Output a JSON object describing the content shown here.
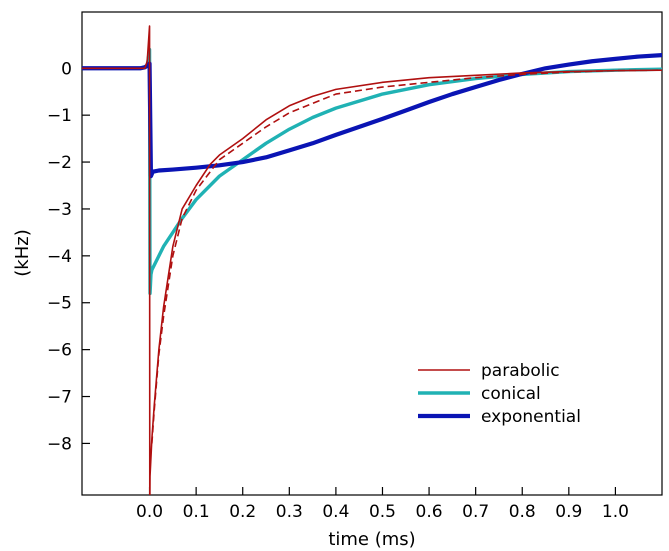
{
  "chart_data": {
    "type": "line",
    "title": "",
    "xlabel": "time (ms)",
    "ylabel": "(kHz)",
    "xlim": [
      -0.145,
      1.1
    ],
    "ylim": [
      -9.1,
      1.2
    ],
    "x_ticks": [
      "0.0",
      "0.1",
      "0.2",
      "0.3",
      "0.4",
      "0.5",
      "0.6",
      "0.7",
      "0.8",
      "0.9",
      "1.0"
    ],
    "x_tick_values": [
      0,
      0.1,
      0.2,
      0.3,
      0.4,
      0.5,
      0.6,
      0.7,
      0.8,
      0.9,
      1.0
    ],
    "y_ticks": [
      "0",
      "−1",
      "−2",
      "−3",
      "−4",
      "−5",
      "−6",
      "−7",
      "−8"
    ],
    "y_tick_values": [
      0,
      -1,
      -2,
      -3,
      -4,
      -5,
      -6,
      -7,
      -8
    ],
    "legend_position": "bottom-right",
    "grid": false,
    "series": [
      {
        "name": "parabolic",
        "color": "#b01010",
        "style": "thin",
        "x": [
          -0.145,
          -0.05,
          -0.01,
          -0.005,
          0.0,
          0.0005,
          0.001,
          0.005,
          0.01,
          0.02,
          0.03,
          0.05,
          0.07,
          0.1,
          0.13,
          0.15,
          0.2,
          0.25,
          0.3,
          0.35,
          0.4,
          0.5,
          0.6,
          0.7,
          0.8,
          0.9,
          1.0,
          1.1
        ],
        "y": [
          0,
          0,
          0,
          0.15,
          0.9,
          -9.5,
          -8.7,
          -7.9,
          -7.2,
          -6.0,
          -5.1,
          -3.8,
          -3.0,
          -2.5,
          -2.05,
          -1.85,
          -1.5,
          -1.1,
          -0.8,
          -0.6,
          -0.45,
          -0.3,
          -0.2,
          -0.15,
          -0.1,
          -0.07,
          -0.05,
          -0.04
        ]
      },
      {
        "name": "",
        "color": "#b01010",
        "style": "dashed",
        "x": [
          0.005,
          0.01,
          0.02,
          0.03,
          0.05,
          0.07,
          0.1,
          0.15,
          0.2,
          0.25,
          0.3,
          0.35,
          0.4,
          0.5,
          0.6,
          0.7,
          0.8,
          0.9,
          1.0,
          1.1
        ],
        "y": [
          -8.0,
          -7.3,
          -6.1,
          -5.3,
          -4.0,
          -3.2,
          -2.6,
          -1.95,
          -1.6,
          -1.25,
          -0.95,
          -0.75,
          -0.55,
          -0.4,
          -0.3,
          -0.2,
          -0.13,
          -0.08,
          -0.05,
          -0.04
        ]
      },
      {
        "name": "conical",
        "color": "#20b2b4",
        "style": "medium",
        "x": [
          -0.145,
          -0.02,
          -0.005,
          0.0,
          0.001,
          0.003,
          0.005,
          0.01,
          0.02,
          0.03,
          0.05,
          0.07,
          0.1,
          0.15,
          0.2,
          0.25,
          0.3,
          0.35,
          0.4,
          0.5,
          0.6,
          0.7,
          0.8,
          0.9,
          1.0,
          1.1
        ],
        "y": [
          0,
          0,
          0.05,
          0.4,
          -4.8,
          -4.4,
          -4.3,
          -4.2,
          -4.0,
          -3.8,
          -3.5,
          -3.2,
          -2.8,
          -2.3,
          -1.95,
          -1.6,
          -1.3,
          -1.05,
          -0.85,
          -0.55,
          -0.35,
          -0.22,
          -0.13,
          -0.07,
          -0.04,
          -0.02
        ]
      },
      {
        "name": "exponential",
        "color": "#0a14b4",
        "style": "thick",
        "x": [
          -0.145,
          -0.02,
          -0.01,
          0.0,
          0.003,
          0.007,
          0.01,
          0.02,
          0.05,
          0.1,
          0.15,
          0.2,
          0.25,
          0.3,
          0.35,
          0.4,
          0.45,
          0.5,
          0.55,
          0.6,
          0.65,
          0.7,
          0.75,
          0.8,
          0.85,
          0.9,
          0.95,
          1.0,
          1.05,
          1.1
        ],
        "y": [
          0,
          0,
          0.02,
          0.1,
          -2.3,
          -2.2,
          -2.2,
          -2.18,
          -2.16,
          -2.12,
          -2.07,
          -2.0,
          -1.9,
          -1.75,
          -1.6,
          -1.42,
          -1.25,
          -1.08,
          -0.9,
          -0.72,
          -0.55,
          -0.4,
          -0.25,
          -0.12,
          0.0,
          0.08,
          0.15,
          0.2,
          0.25,
          0.28
        ]
      }
    ]
  }
}
